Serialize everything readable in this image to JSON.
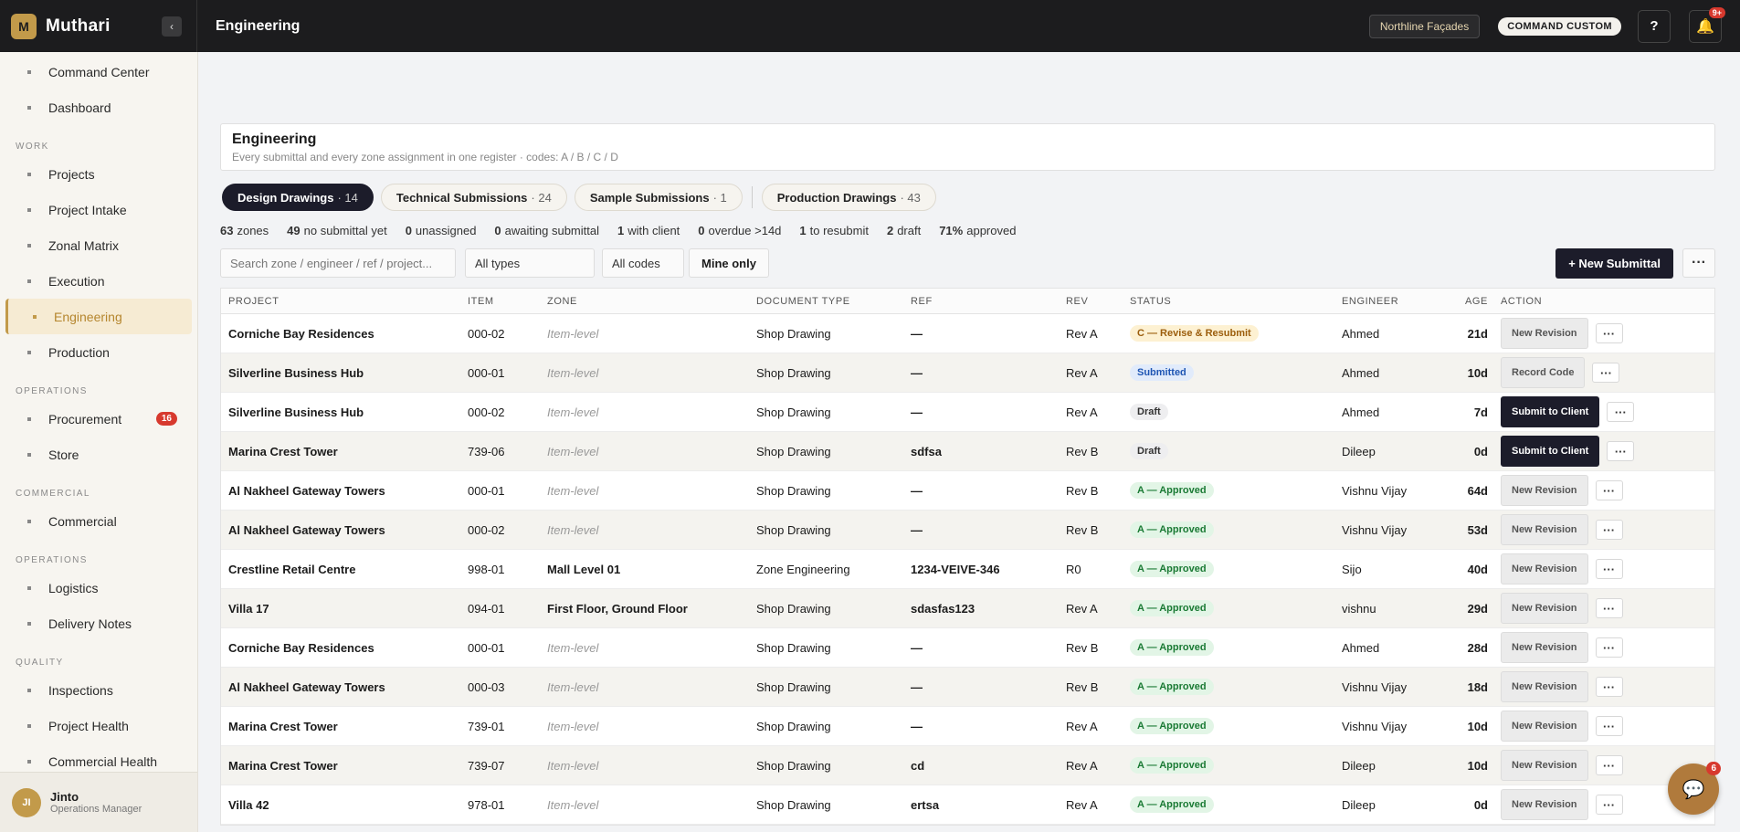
{
  "brand": {
    "logo_letter": "M",
    "name": "Muthari",
    "collapse_icon": "‹"
  },
  "topbar": {
    "title": "Engineering",
    "tenant": "Northline Façades",
    "command": "COMMAND CUSTOM",
    "help": "?",
    "bell_badge": "9+"
  },
  "sidebar": {
    "top_items": [
      "Command Center",
      "Dashboard"
    ],
    "sections": [
      {
        "label": "WORK",
        "items": [
          "Projects",
          "Project Intake",
          "Zonal Matrix",
          "Execution",
          "Engineering",
          "Production"
        ]
      },
      {
        "label": "OPERATIONS",
        "items": [
          "Procurement",
          "Store"
        ]
      },
      {
        "label": "COMMERCIAL",
        "items": [
          "Commercial"
        ]
      },
      {
        "label": "OPERATIONS",
        "items": [
          "Logistics",
          "Delivery Notes"
        ]
      },
      {
        "label": "QUALITY",
        "items": [
          "Inspections",
          "Project Health",
          "Commercial Health"
        ]
      }
    ],
    "procurement_badge": "16",
    "user": {
      "initials": "JI",
      "name": "Jinto",
      "role": "Operations Manager"
    }
  },
  "header": {
    "title": "Engineering",
    "subtitle": "Every submittal and every zone assignment in one register · codes: A / B / C / D"
  },
  "tabs": [
    {
      "label": "Design Drawings",
      "count": "· 14"
    },
    {
      "label": "Technical Submissions",
      "count": "· 24"
    },
    {
      "label": "Sample Submissions",
      "count": "· 1"
    },
    {
      "label": "Production Drawings",
      "count": "· 43"
    }
  ],
  "stats": [
    {
      "value": "63",
      "label": "zones"
    },
    {
      "value": "49",
      "label": "no submittal yet"
    },
    {
      "value": "0",
      "label": "unassigned"
    },
    {
      "value": "0",
      "label": "awaiting submittal"
    },
    {
      "value": "1",
      "label": "with client"
    },
    {
      "value": "0",
      "label": "overdue >14d"
    },
    {
      "value": "1",
      "label": "to resubmit"
    },
    {
      "value": "2",
      "label": "draft"
    },
    {
      "value": "71%",
      "label": "approved"
    }
  ],
  "filters": {
    "search_placeholder": "Search zone / engineer / ref / project...",
    "type": "All types",
    "code": "All codes",
    "mine": "Mine only",
    "new_button": "+ New Submittal",
    "more": "···"
  },
  "table": {
    "columns": [
      "PROJECT",
      "ITEM",
      "ZONE",
      "DOCUMENT TYPE",
      "REF",
      "REV",
      "STATUS",
      "ENGINEER",
      "AGE",
      "ACTION"
    ],
    "rows": [
      {
        "project": "Corniche Bay Residences",
        "item": "000-02",
        "zone": "Item-level",
        "zone_style": "italic",
        "doctype": "Shop Drawing",
        "ref": "—",
        "rev": "Rev A",
        "status": "C — Revise & Resubmit",
        "status_type": "revise",
        "engineer": "Ahmed",
        "age": "21d",
        "action": "New Revision",
        "action_style": "light"
      },
      {
        "project": "Silverline Business Hub",
        "item": "000-01",
        "zone": "Item-level",
        "zone_style": "italic",
        "doctype": "Shop Drawing",
        "ref": "—",
        "rev": "Rev A",
        "status": "Submitted",
        "status_type": "submitted",
        "engineer": "Ahmed",
        "age": "10d",
        "action": "Record Code",
        "action_style": "light"
      },
      {
        "project": "Silverline Business Hub",
        "item": "000-02",
        "zone": "Item-level",
        "zone_style": "italic",
        "doctype": "Shop Drawing",
        "ref": "—",
        "rev": "Rev A",
        "status": "Draft",
        "status_type": "draft",
        "engineer": "Ahmed",
        "age": "7d",
        "action": "Submit to Client",
        "action_style": "dark"
      },
      {
        "project": "Marina Crest Tower",
        "item": "739-06",
        "zone": "Item-level",
        "zone_style": "italic",
        "doctype": "Shop Drawing",
        "ref": "sdfsa",
        "rev": "Rev B",
        "status": "Draft",
        "status_type": "draft",
        "engineer": "Dileep",
        "age": "0d",
        "action": "Submit to Client",
        "action_style": "dark"
      },
      {
        "project": "Al Nakheel Gateway Towers",
        "item": "000-01",
        "zone": "Item-level",
        "zone_style": "italic",
        "doctype": "Shop Drawing",
        "ref": "—",
        "rev": "Rev B",
        "status": "A — Approved",
        "status_type": "approved",
        "engineer": "Vishnu Vijay",
        "age": "64d",
        "action": "New Revision",
        "action_style": "light"
      },
      {
        "project": "Al Nakheel Gateway Towers",
        "item": "000-02",
        "zone": "Item-level",
        "zone_style": "italic",
        "doctype": "Shop Drawing",
        "ref": "—",
        "rev": "Rev B",
        "status": "A — Approved",
        "status_type": "approved",
        "engineer": "Vishnu Vijay",
        "age": "53d",
        "action": "New Revision",
        "action_style": "light"
      },
      {
        "project": "Crestline Retail Centre",
        "item": "998-01",
        "zone": "Mall Level 01",
        "zone_style": "bold",
        "doctype": "Zone Engineering",
        "ref": "1234-VEIVE-346",
        "rev": "R0",
        "status": "A — Approved",
        "status_type": "approved",
        "engineer": "Sijo",
        "age": "40d",
        "action": "New Revision",
        "action_style": "light"
      },
      {
        "project": "Villa 17",
        "item": "094-01",
        "zone": "First Floor, Ground Floor",
        "zone_style": "bold",
        "doctype": "Shop Drawing",
        "ref": "sdasfas123",
        "rev": "Rev A",
        "status": "A — Approved",
        "status_type": "approved",
        "engineer": "vishnu",
        "age": "29d",
        "action": "New Revision",
        "action_style": "light"
      },
      {
        "project": "Corniche Bay Residences",
        "item": "000-01",
        "zone": "Item-level",
        "zone_style": "italic",
        "doctype": "Shop Drawing",
        "ref": "—",
        "rev": "Rev B",
        "status": "A — Approved",
        "status_type": "approved",
        "engineer": "Ahmed",
        "age": "28d",
        "action": "New Revision",
        "action_style": "light"
      },
      {
        "project": "Al Nakheel Gateway Towers",
        "item": "000-03",
        "zone": "Item-level",
        "zone_style": "italic",
        "doctype": "Shop Drawing",
        "ref": "—",
        "rev": "Rev B",
        "status": "A — Approved",
        "status_type": "approved",
        "engineer": "Vishnu Vijay",
        "age": "18d",
        "action": "New Revision",
        "action_style": "light"
      },
      {
        "project": "Marina Crest Tower",
        "item": "739-01",
        "zone": "Item-level",
        "zone_style": "italic",
        "doctype": "Shop Drawing",
        "ref": "—",
        "rev": "Rev A",
        "status": "A — Approved",
        "status_type": "approved",
        "engineer": "Vishnu Vijay",
        "age": "10d",
        "action": "New Revision",
        "action_style": "light"
      },
      {
        "project": "Marina Crest Tower",
        "item": "739-07",
        "zone": "Item-level",
        "zone_style": "italic",
        "doctype": "Shop Drawing",
        "ref": "cd",
        "rev": "Rev A",
        "status": "A — Approved",
        "status_type": "approved",
        "engineer": "Dileep",
        "age": "10d",
        "action": "New Revision",
        "action_style": "light"
      },
      {
        "project": "Villa 42",
        "item": "978-01",
        "zone": "Item-level",
        "zone_style": "italic",
        "doctype": "Shop Drawing",
        "ref": "ertsa",
        "rev": "Rev A",
        "status": "A — Approved",
        "status_type": "approved",
        "engineer": "Dileep",
        "age": "0d",
        "action": "New Revision",
        "action_style": "light"
      }
    ]
  },
  "chat": {
    "badge": "6",
    "icon": "chat-bubble-icon"
  },
  "row_more": "···"
}
